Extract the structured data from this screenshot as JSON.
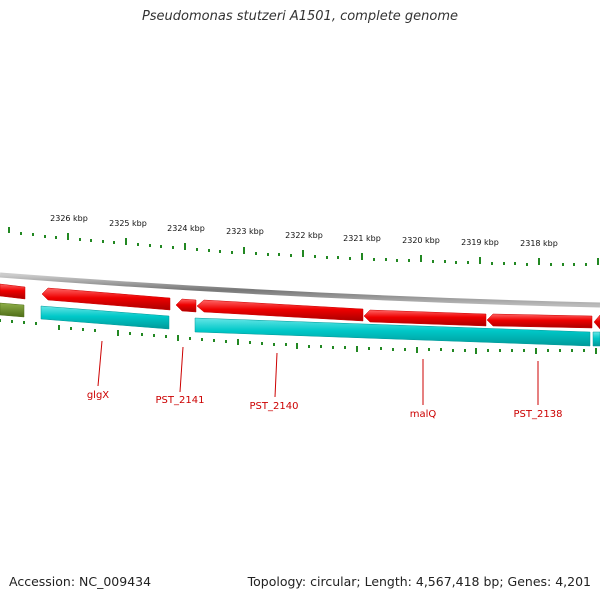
{
  "title": "Pseudomonas stutzeri A1501, complete genome",
  "footer": {
    "accession": "Accession: NC_009434",
    "summary": "Topology: circular; Length: 4,567,418 bp; Genes: 4,201"
  },
  "scale_labels": [
    "2326 kbp",
    "2325 kbp",
    "2324 kbp",
    "2323 kbp",
    "2322 kbp",
    "2321 kbp",
    "2320 kbp",
    "2319 kbp",
    "2318 kbp"
  ],
  "gene_labels": [
    "glgX",
    "PST_2141",
    "PST_2140",
    "malQ",
    "PST_2138"
  ],
  "colors": {
    "forward_gene": "#ee0000",
    "reverse_gene": "#00c8c8",
    "other_gene": "#6b8e23",
    "backbone": "#888888",
    "tick": "#228822",
    "label": "#cc0000"
  }
}
